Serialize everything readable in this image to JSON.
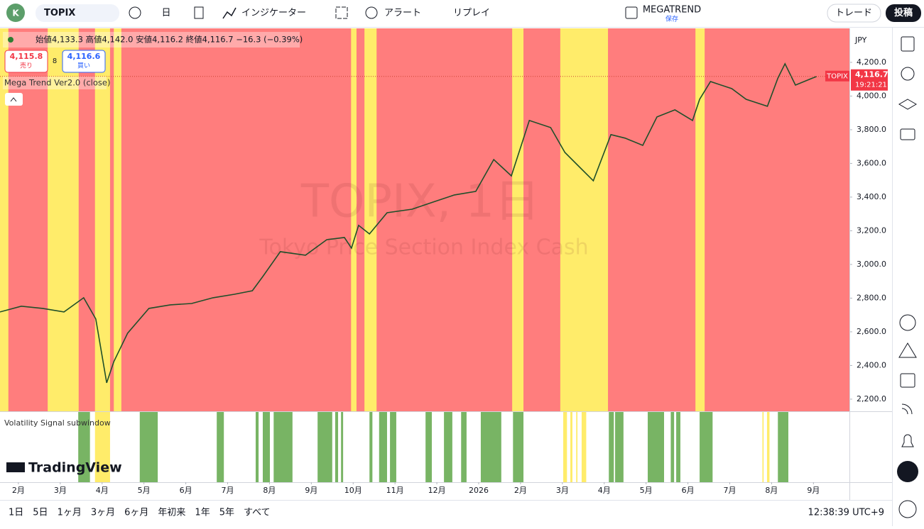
{
  "ui": {
    "avatar": "K",
    "symbol": "TOPIX",
    "interval": "日",
    "indicators": "インジケーター",
    "alert": "アラート",
    "replay": "リプレイ",
    "layout_name": "MEGATREND",
    "layout_status": "保存",
    "trade": "トレード",
    "publish": "投稿",
    "ohlc": "始値4,133.3 高値4,142.0 安値4,116.2 終値4,116.7 −16.3 (−0.39%)",
    "sell_price": "4,115.8",
    "sell": "売り",
    "spread": "8",
    "buy_price": "4,116.6",
    "buy": "買い",
    "indicator_main": "Mega Trend Ver2.0 (close)",
    "indicator_sub": "Volatility Signal subwindow",
    "watermark_symbol": "TOPIX, 1日",
    "watermark_desc": "Tokyo Price Section Index Cash",
    "logo": "TradingView",
    "currency": "JPY",
    "price_tag_symbol": "TOPIX",
    "countdown": "19:21:21",
    "ranges": [
      "1日",
      "5日",
      "1ヶ月",
      "3ヶ月",
      "6ヶ月",
      "年初来",
      "1年",
      "5年",
      "すべて"
    ],
    "clock": "12:38:39 UTC+9"
  },
  "chart_data": {
    "type": "line",
    "color": "#1f4f2a",
    "x": [
      -0.44,
      0.07,
      0.58,
      1.09,
      1.56,
      1.85,
      2.11,
      2.28,
      2.61,
      3.12,
      3.63,
      4.14,
      4.65,
      5.16,
      5.59,
      5.84,
      6.26,
      6.86,
      7.37,
      7.79,
      7.96,
      8.13,
      8.39,
      8.81,
      9.41,
      9.92,
      10.42,
      10.93,
      11.36,
      11.78,
      12.21,
      12.72,
      13.06,
      13.4,
      13.74,
      14.16,
      14.5,
      14.92,
      15.26,
      15.69,
      16.11,
      16.28,
      16.54,
      17.05,
      17.39,
      17.9,
      18.15,
      18.32,
      18.57,
      19.08
    ],
    "values": [
      2718,
      2752,
      2739,
      2718,
      2802,
      2676,
      2297,
      2423,
      2592,
      2739,
      2760,
      2768,
      2802,
      2823,
      2844,
      2928,
      3076,
      3055,
      3147,
      3160,
      3097,
      3232,
      3181,
      3307,
      3328,
      3371,
      3413,
      3434,
      3623,
      3526,
      3855,
      3813,
      3665,
      3581,
      3497,
      3771,
      3750,
      3707,
      3876,
      3918,
      3855,
      3981,
      4086,
      4044,
      3981,
      3939,
      4107,
      4192,
      4065,
      4116.7
    ],
    "xlim": [
      -0.44,
      19.86
    ],
    "ylim": [
      2128,
      4402
    ],
    "xticks": [
      {
        "value": 0,
        "label": "2月"
      },
      {
        "value": 1,
        "label": "3月"
      },
      {
        "value": 2,
        "label": "4月"
      },
      {
        "value": 3,
        "label": "5月"
      },
      {
        "value": 4,
        "label": "6月"
      },
      {
        "value": 5,
        "label": "7月"
      },
      {
        "value": 6,
        "label": "8月"
      },
      {
        "value": 7,
        "label": "9月"
      },
      {
        "value": 8,
        "label": "10月"
      },
      {
        "value": 9,
        "label": "11月"
      },
      {
        "value": 10,
        "label": "12月"
      },
      {
        "value": 11,
        "label": "2026"
      },
      {
        "value": 12,
        "label": "2月"
      },
      {
        "value": 13,
        "label": "3月"
      },
      {
        "value": 14,
        "label": "4月"
      },
      {
        "value": 15,
        "label": "5月"
      },
      {
        "value": 16,
        "label": "6月"
      },
      {
        "value": 17,
        "label": "7月"
      },
      {
        "value": 18,
        "label": "8月"
      },
      {
        "value": 19,
        "label": "9月"
      }
    ],
    "yticks": [
      {
        "value": 2200,
        "label": "2,200.0"
      },
      {
        "value": 2400,
        "label": "2,400.0"
      },
      {
        "value": 2600,
        "label": "2,600.0"
      },
      {
        "value": 2800,
        "label": "2,800.0"
      },
      {
        "value": 3000,
        "label": "3,000.0"
      },
      {
        "value": 3200,
        "label": "3,200.0"
      },
      {
        "value": 3400,
        "label": "3,400.0"
      },
      {
        "value": 3600,
        "label": "3,600.0"
      },
      {
        "value": 3800,
        "label": "3,800.0"
      },
      {
        "value": 4000,
        "label": "4,000.0"
      },
      {
        "value": 4200,
        "label": "4,200.0"
      }
    ],
    "last_price": {
      "value": 4116.7,
      "label": "4,116.7"
    },
    "background_color": "#ff7d7d",
    "zone_color": "#ffec6a",
    "zones": [
      [
        -0.44,
        -0.24
      ],
      [
        0.7,
        1.44
      ],
      [
        1.83,
        2.19
      ],
      [
        2.28,
        2.46
      ],
      [
        7.95,
        8.08
      ],
      [
        8.27,
        8.56
      ],
      [
        11.8,
        12.07
      ],
      [
        12.95,
        14.09
      ],
      [
        16.18,
        16.4
      ]
    ],
    "signal_color": "#78b464",
    "signals": [
      [
        1.43,
        1.71
      ],
      [
        2.9,
        3.33
      ],
      [
        4.74,
        4.91
      ],
      [
        5.67,
        5.74
      ],
      [
        5.84,
        6.01
      ],
      [
        6.1,
        6.55
      ],
      [
        7.15,
        7.5
      ],
      [
        7.57,
        7.64
      ],
      [
        7.71,
        7.76
      ],
      [
        8.39,
        8.46
      ],
      [
        8.62,
        8.81
      ],
      [
        8.88,
        9.03
      ],
      [
        9.73,
        9.88
      ],
      [
        10.17,
        10.37
      ],
      [
        10.58,
        10.71
      ],
      [
        11.05,
        11.54
      ],
      [
        11.82,
        12.07
      ],
      [
        14.11,
        14.23
      ],
      [
        14.26,
        14.46
      ],
      [
        15.04,
        15.43
      ],
      [
        15.59,
        15.67
      ],
      [
        15.72,
        15.82
      ],
      [
        16.28,
        16.59
      ],
      [
        18.15,
        18.4
      ]
    ],
    "signal_warn": [
      [
        1.83,
        2.19
      ],
      [
        13.02,
        13.11
      ],
      [
        13.19,
        13.24
      ],
      [
        13.33,
        13.36
      ],
      [
        13.46,
        13.57
      ],
      [
        17.78,
        17.81
      ],
      [
        17.89,
        17.95
      ]
    ]
  }
}
